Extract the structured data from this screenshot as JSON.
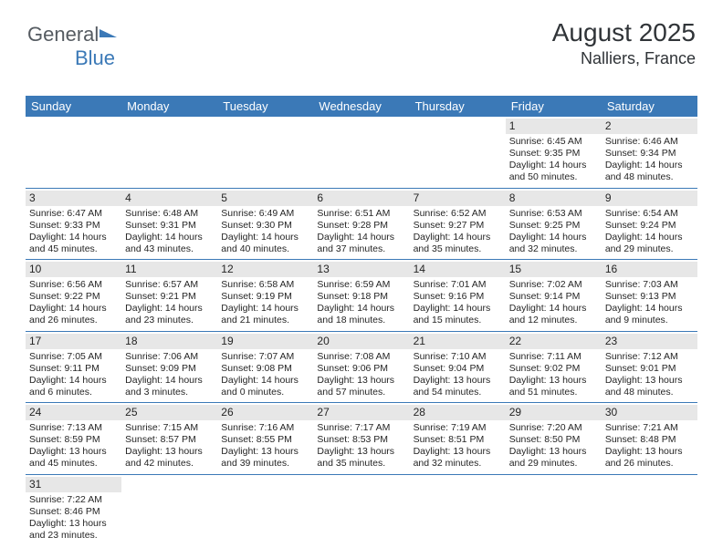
{
  "logo": {
    "text1": "General",
    "text2": "Blue"
  },
  "header": {
    "month": "August 2025",
    "location": "Nalliers, France"
  },
  "dayNames": [
    "Sunday",
    "Monday",
    "Tuesday",
    "Wednesday",
    "Thursday",
    "Friday",
    "Saturday"
  ],
  "colors": {
    "brand": "#3b79b7",
    "headerText": "#ffffff",
    "dayNumBg": "#e7e7e7",
    "text": "#252525"
  },
  "weeks": [
    [
      null,
      null,
      null,
      null,
      null,
      {
        "n": "1",
        "sr": "6:45 AM",
        "ss": "9:35 PM",
        "dl": "14 hours and 50 minutes."
      },
      {
        "n": "2",
        "sr": "6:46 AM",
        "ss": "9:34 PM",
        "dl": "14 hours and 48 minutes."
      }
    ],
    [
      {
        "n": "3",
        "sr": "6:47 AM",
        "ss": "9:33 PM",
        "dl": "14 hours and 45 minutes."
      },
      {
        "n": "4",
        "sr": "6:48 AM",
        "ss": "9:31 PM",
        "dl": "14 hours and 43 minutes."
      },
      {
        "n": "5",
        "sr": "6:49 AM",
        "ss": "9:30 PM",
        "dl": "14 hours and 40 minutes."
      },
      {
        "n": "6",
        "sr": "6:51 AM",
        "ss": "9:28 PM",
        "dl": "14 hours and 37 minutes."
      },
      {
        "n": "7",
        "sr": "6:52 AM",
        "ss": "9:27 PM",
        "dl": "14 hours and 35 minutes."
      },
      {
        "n": "8",
        "sr": "6:53 AM",
        "ss": "9:25 PM",
        "dl": "14 hours and 32 minutes."
      },
      {
        "n": "9",
        "sr": "6:54 AM",
        "ss": "9:24 PM",
        "dl": "14 hours and 29 minutes."
      }
    ],
    [
      {
        "n": "10",
        "sr": "6:56 AM",
        "ss": "9:22 PM",
        "dl": "14 hours and 26 minutes."
      },
      {
        "n": "11",
        "sr": "6:57 AM",
        "ss": "9:21 PM",
        "dl": "14 hours and 23 minutes."
      },
      {
        "n": "12",
        "sr": "6:58 AM",
        "ss": "9:19 PM",
        "dl": "14 hours and 21 minutes."
      },
      {
        "n": "13",
        "sr": "6:59 AM",
        "ss": "9:18 PM",
        "dl": "14 hours and 18 minutes."
      },
      {
        "n": "14",
        "sr": "7:01 AM",
        "ss": "9:16 PM",
        "dl": "14 hours and 15 minutes."
      },
      {
        "n": "15",
        "sr": "7:02 AM",
        "ss": "9:14 PM",
        "dl": "14 hours and 12 minutes."
      },
      {
        "n": "16",
        "sr": "7:03 AM",
        "ss": "9:13 PM",
        "dl": "14 hours and 9 minutes."
      }
    ],
    [
      {
        "n": "17",
        "sr": "7:05 AM",
        "ss": "9:11 PM",
        "dl": "14 hours and 6 minutes."
      },
      {
        "n": "18",
        "sr": "7:06 AM",
        "ss": "9:09 PM",
        "dl": "14 hours and 3 minutes."
      },
      {
        "n": "19",
        "sr": "7:07 AM",
        "ss": "9:08 PM",
        "dl": "14 hours and 0 minutes."
      },
      {
        "n": "20",
        "sr": "7:08 AM",
        "ss": "9:06 PM",
        "dl": "13 hours and 57 minutes."
      },
      {
        "n": "21",
        "sr": "7:10 AM",
        "ss": "9:04 PM",
        "dl": "13 hours and 54 minutes."
      },
      {
        "n": "22",
        "sr": "7:11 AM",
        "ss": "9:02 PM",
        "dl": "13 hours and 51 minutes."
      },
      {
        "n": "23",
        "sr": "7:12 AM",
        "ss": "9:01 PM",
        "dl": "13 hours and 48 minutes."
      }
    ],
    [
      {
        "n": "24",
        "sr": "7:13 AM",
        "ss": "8:59 PM",
        "dl": "13 hours and 45 minutes."
      },
      {
        "n": "25",
        "sr": "7:15 AM",
        "ss": "8:57 PM",
        "dl": "13 hours and 42 minutes."
      },
      {
        "n": "26",
        "sr": "7:16 AM",
        "ss": "8:55 PM",
        "dl": "13 hours and 39 minutes."
      },
      {
        "n": "27",
        "sr": "7:17 AM",
        "ss": "8:53 PM",
        "dl": "13 hours and 35 minutes."
      },
      {
        "n": "28",
        "sr": "7:19 AM",
        "ss": "8:51 PM",
        "dl": "13 hours and 32 minutes."
      },
      {
        "n": "29",
        "sr": "7:20 AM",
        "ss": "8:50 PM",
        "dl": "13 hours and 29 minutes."
      },
      {
        "n": "30",
        "sr": "7:21 AM",
        "ss": "8:48 PM",
        "dl": "13 hours and 26 minutes."
      }
    ],
    [
      {
        "n": "31",
        "sr": "7:22 AM",
        "ss": "8:46 PM",
        "dl": "13 hours and 23 minutes."
      },
      null,
      null,
      null,
      null,
      null,
      null
    ]
  ],
  "labels": {
    "sunrise": "Sunrise: ",
    "sunset": "Sunset: ",
    "daylight": "Daylight: "
  }
}
